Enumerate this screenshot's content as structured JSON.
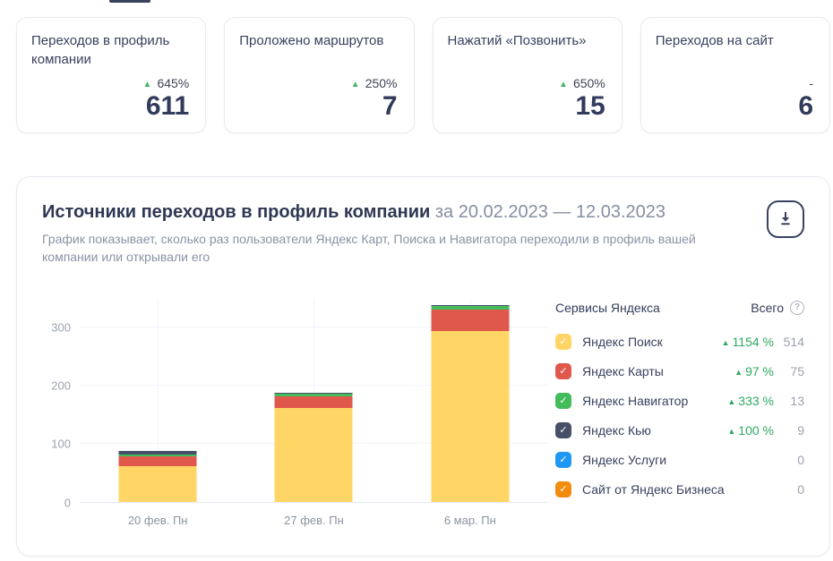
{
  "icons": {
    "trend_up": "▲",
    "check": "✓",
    "help": "?"
  },
  "colors": {
    "accent_dark": "#39425E",
    "trend_green": "#2FA960",
    "grid": "#EFF3FA"
  },
  "stat_cards": [
    {
      "title": "Переходов в профиль компании",
      "trend": "645%",
      "has_arrow": true,
      "value": "611"
    },
    {
      "title": "Проложено маршрутов",
      "trend": "250%",
      "has_arrow": true,
      "value": "7"
    },
    {
      "title": "Нажатий «Позвонить»",
      "trend": "650%",
      "has_arrow": true,
      "value": "15"
    },
    {
      "title": "Переходов на сайт",
      "trend": "-",
      "has_arrow": false,
      "value": "6"
    }
  ],
  "main_card": {
    "title": "Источники переходов в профиль компании",
    "period": "за 20.02.2023 — 12.03.2023",
    "subtitle": "График показывает, сколько раз пользователи Яндекс Карт, Поиска и Навигатора переходили в профиль вашей компании или открывали его",
    "legend": {
      "header_left": "Сервисы Яндекса",
      "header_right": "Всего",
      "items": [
        {
          "label": "Яндекс Поиск",
          "color": "#FFD666",
          "percent": "1154 %",
          "total": "514"
        },
        {
          "label": "Яндекс Карты",
          "color": "#E0574C",
          "percent": "97 %",
          "total": "75"
        },
        {
          "label": "Яндекс Навигатор",
          "color": "#43BC5C",
          "percent": "333 %",
          "total": "13"
        },
        {
          "label": "Яндекс Кью",
          "color": "#475069",
          "percent": "100 %",
          "total": "9"
        },
        {
          "label": "Яндекс Услуги",
          "color": "#1F98F5",
          "percent": null,
          "total": "0"
        },
        {
          "label": "Сайт от Яндекс Бизнеса",
          "color": "#F28C0F",
          "percent": null,
          "total": "0"
        }
      ]
    }
  },
  "chart_data": {
    "type": "bar",
    "stacked": true,
    "categories": [
      "20 фев. Пн",
      "27 фев. Пн",
      "6 мар. Пн"
    ],
    "series": [
      {
        "name": "Яндекс Поиск",
        "color": "#FFD666",
        "values": [
          61,
          160,
          293
        ]
      },
      {
        "name": "Яндекс Карты",
        "color": "#E0574C",
        "values": [
          17,
          21,
          37
        ]
      },
      {
        "name": "Яндекс Навигатор",
        "color": "#43BC5C",
        "values": [
          3,
          4,
          6
        ]
      },
      {
        "name": "Яндекс Кью",
        "color": "#475069",
        "values": [
          6,
          2,
          1
        ]
      },
      {
        "name": "Яндекс Услуги",
        "color": "#1F98F5",
        "values": [
          0,
          0,
          0
        ]
      },
      {
        "name": "Сайт от Яндекс Бизнеса",
        "color": "#F28C0F",
        "values": [
          0,
          0,
          0
        ]
      }
    ],
    "title": "Источники переходов в профиль компании",
    "xlabel": "",
    "ylabel": "",
    "ylim": [
      0,
      350
    ],
    "yticks": [
      0,
      100,
      200,
      300
    ],
    "grid": true,
    "legend_position": "right"
  }
}
